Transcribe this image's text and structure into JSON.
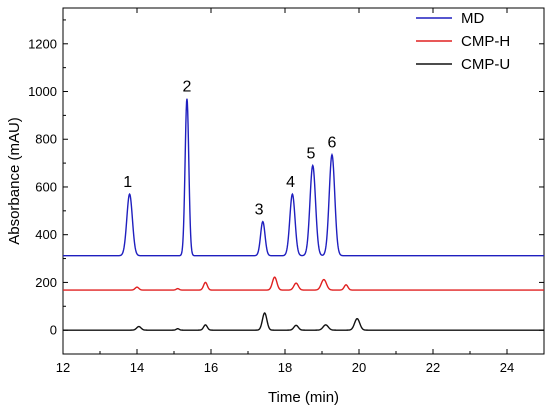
{
  "chart_data": {
    "type": "line",
    "title": "",
    "xlabel": "Time (min)",
    "ylabel": "Absorbance (mAU)",
    "xlim": [
      12,
      25
    ],
    "ylim": [
      -100,
      1350
    ],
    "x_ticks": [
      12,
      14,
      16,
      18,
      20,
      22,
      24
    ],
    "y_ticks": [
      0,
      200,
      400,
      600,
      800,
      1000,
      1200
    ],
    "grid": false,
    "legend_position": "top-right",
    "series": [
      {
        "name": "MD",
        "color": "#1f1fbf",
        "baseline": 312,
        "peaks": [
          {
            "x": 13.8,
            "y": 570,
            "sigma": 0.075
          },
          {
            "x": 15.35,
            "y": 970,
            "sigma": 0.05
          },
          {
            "x": 17.4,
            "y": 455,
            "sigma": 0.06
          },
          {
            "x": 18.2,
            "y": 570,
            "sigma": 0.07
          },
          {
            "x": 18.75,
            "y": 690,
            "sigma": 0.075
          },
          {
            "x": 19.27,
            "y": 735,
            "sigma": 0.075
          }
        ]
      },
      {
        "name": "CMP-H",
        "color": "#e02020",
        "baseline": 168,
        "peaks": [
          {
            "x": 14.0,
            "y": 180,
            "sigma": 0.05
          },
          {
            "x": 15.1,
            "y": 174,
            "sigma": 0.04
          },
          {
            "x": 15.85,
            "y": 200,
            "sigma": 0.05
          },
          {
            "x": 17.72,
            "y": 222,
            "sigma": 0.06
          },
          {
            "x": 18.3,
            "y": 197,
            "sigma": 0.06
          },
          {
            "x": 19.05,
            "y": 212,
            "sigma": 0.07
          },
          {
            "x": 19.65,
            "y": 190,
            "sigma": 0.05
          }
        ]
      },
      {
        "name": "CMP-U",
        "color": "#111111",
        "baseline": 0,
        "peaks": [
          {
            "x": 14.05,
            "y": 15,
            "sigma": 0.06
          },
          {
            "x": 15.1,
            "y": 6,
            "sigma": 0.04
          },
          {
            "x": 15.85,
            "y": 22,
            "sigma": 0.05
          },
          {
            "x": 17.45,
            "y": 72,
            "sigma": 0.06
          },
          {
            "x": 18.3,
            "y": 20,
            "sigma": 0.06
          },
          {
            "x": 19.1,
            "y": 22,
            "sigma": 0.07
          },
          {
            "x": 19.95,
            "y": 48,
            "sigma": 0.07
          }
        ]
      }
    ],
    "annotations": [
      {
        "text": "1",
        "x": 13.75,
        "y": 600
      },
      {
        "text": "2",
        "x": 15.35,
        "y": 1000
      },
      {
        "text": "3",
        "x": 17.3,
        "y": 485
      },
      {
        "text": "4",
        "x": 18.15,
        "y": 600
      },
      {
        "text": "5",
        "x": 18.7,
        "y": 720
      },
      {
        "text": "6",
        "x": 19.27,
        "y": 765
      }
    ]
  }
}
